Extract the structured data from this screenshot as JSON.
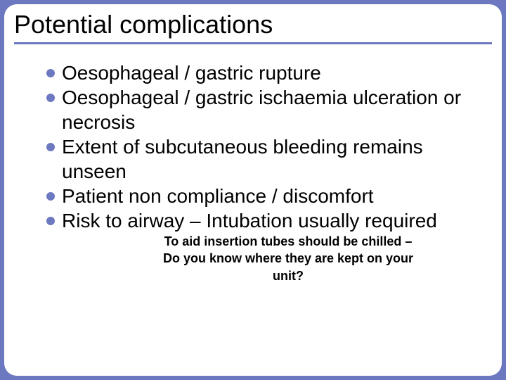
{
  "slide": {
    "title": "Potential complications",
    "bullets": [
      {
        "text": "Oesophageal / gastric rupture"
      },
      {
        "text": "Oesophageal / gastric ischaemia ulceration or necrosis"
      },
      {
        "text": "Extent of subcutaneous bleeding remains unseen"
      },
      {
        "text": "Patient non compliance / discomfort"
      },
      {
        "text": "Risk to airway – Intubation usually required"
      }
    ],
    "footnote_line1": "To aid insertion tubes should be chilled –",
    "footnote_line2": "Do you know where they are kept on your unit?"
  },
  "style": {
    "background_color": "#6c78c0",
    "slide_background": "#ffffff",
    "title_fontsize": 36,
    "title_color": "#000000",
    "bullet_fontsize": 28,
    "bullet_color": "#000000",
    "bullet_dot_color": "#6c78c0",
    "bullet_dot_size": 12,
    "divider_color": "#6c78c0",
    "divider_width": 3,
    "footnote_fontsize": 18,
    "footnote_weight": "bold",
    "slide_border_radius": 18
  }
}
